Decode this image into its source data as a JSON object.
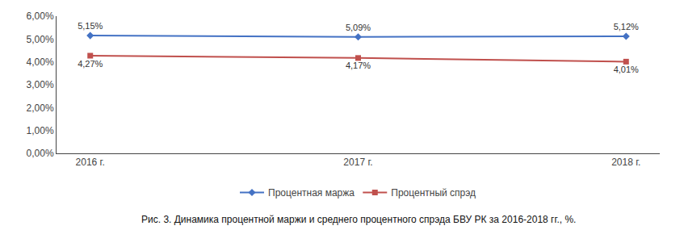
{
  "chart_data": {
    "type": "line",
    "categories": [
      "2016 г.",
      "2017 г.",
      "2018 г."
    ],
    "series": [
      {
        "name": "Процентная маржа",
        "color": "#4472C4",
        "marker": "diamond",
        "values": [
          5.15,
          5.09,
          5.12
        ],
        "value_labels": [
          "5,15%",
          "5,09%",
          "5,12%"
        ]
      },
      {
        "name": "Процентный спрэд",
        "color": "#C0504D",
        "marker": "square",
        "values": [
          4.27,
          4.17,
          4.01
        ],
        "value_labels": [
          "4,27%",
          "4,17%",
          "4,01%"
        ]
      }
    ],
    "ylim": [
      0,
      6.0
    ],
    "yticks": [
      {
        "value": 0.0,
        "label": "0,00%"
      },
      {
        "value": 1.0,
        "label": "1,00%"
      },
      {
        "value": 2.0,
        "label": "2,00%"
      },
      {
        "value": 3.0,
        "label": "3,00%"
      },
      {
        "value": 4.0,
        "label": "4,00%"
      },
      {
        "value": 5.0,
        "label": "5,00%"
      },
      {
        "value": 6.0,
        "label": "6,00%"
      }
    ],
    "data_labels": true,
    "grid": false,
    "legend": "bottom",
    "annotations": [
      "Рис. 3. Динамика процентной маржи и среднего процентного спрэда БВУ РК за 2016-2018 гг., %."
    ]
  }
}
